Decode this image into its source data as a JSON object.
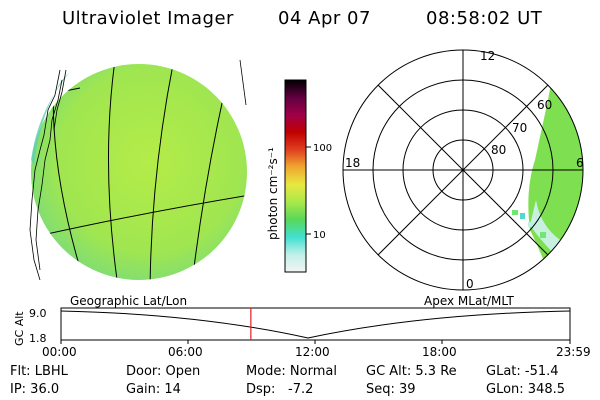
{
  "header": {
    "instrument": "Ultraviolet Imager",
    "date": "04 Apr 07",
    "time": "08:58:02 UT"
  },
  "colors": {
    "disk_fill": "#a8e84a",
    "disk_edge": "#5fd0a0",
    "polar_fill": "#7ee050"
  },
  "colorbar": {
    "unit_label": "photon cm⁻²s⁻¹",
    "tick_100": "100",
    "tick_10": "10",
    "stops": [
      "#f4f4f4",
      "#c0f0e8",
      "#40e0d0",
      "#58d858",
      "#a8e84a",
      "#e8e840",
      "#f0a830",
      "#e04020",
      "#c00000",
      "#a0004a",
      "#600040",
      "#000000"
    ]
  },
  "polar_plot": {
    "mlt_12": "12",
    "mlt_18": "18",
    "mlt_6": "6",
    "mlt_0": "0",
    "lat_60": "60",
    "lat_70": "70",
    "lat_80": "80"
  },
  "projection_labels": {
    "left": "Geographic Lat/Lon",
    "right": "Apex MLat/MLT"
  },
  "altitude_strip": {
    "ylabel": "GC Alt",
    "y_max": "9.0",
    "y_min": "1.8",
    "x_ticks": [
      "00:00",
      "06:00",
      "12:00",
      "18:00",
      "23:59"
    ],
    "cursor_time_fraction": 0.373
  },
  "status": {
    "flt": "Flt: LBHL",
    "door": "Door: Open",
    "mode": "Mode: Normal",
    "gcalt": "GC Alt: 5.3 Re",
    "glat": "GLat: -51.4",
    "ip": "IP: 36.0",
    "gain": "Gain: 14",
    "dsp_label": "Dsp:",
    "dsp_value": "-7.2",
    "seq": "Seq: 39",
    "glon": "GLon: 348.5"
  }
}
